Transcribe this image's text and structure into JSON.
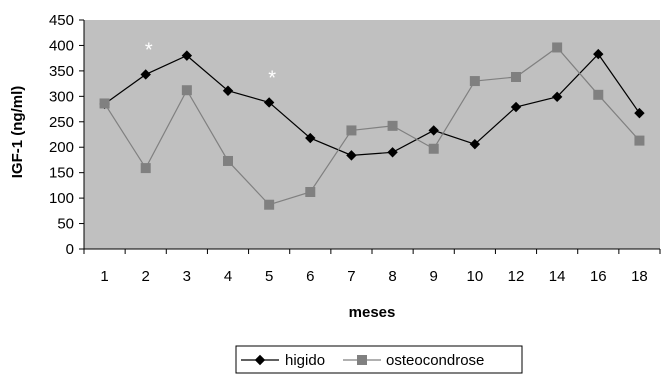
{
  "chart_data": {
    "type": "line",
    "title": "",
    "xlabel": "meses",
    "ylabel": "IGF-1 (ng/ml)",
    "ylim": [
      0,
      450
    ],
    "yticks": [
      "0",
      "50",
      "100",
      "150",
      "200",
      "250",
      "300",
      "350",
      "400",
      "450"
    ],
    "categories": [
      "1",
      "2",
      "3",
      "4",
      "5",
      "6",
      "7",
      "8",
      "9",
      "10",
      "12",
      "14",
      "16",
      "18"
    ],
    "grid": false,
    "legend_position": "bottom",
    "series": [
      {
        "name": "higido",
        "marker": "diamond",
        "color": "#000000",
        "values": [
          285,
          343,
          380,
          311,
          288,
          218,
          184,
          190,
          233,
          206,
          279,
          299,
          383,
          267
        ]
      },
      {
        "name": "osteocondrose",
        "marker": "square",
        "color": "#808080",
        "values": [
          286,
          159,
          312,
          173,
          87,
          112,
          233,
          242,
          197,
          330,
          338,
          396,
          303,
          213
        ]
      }
    ],
    "annotations": [
      {
        "text": "*",
        "category": "2",
        "y": 400
      },
      {
        "text": "*",
        "category": "5",
        "y": 345
      }
    ],
    "colors": {
      "plot_background": "#c0c0c0"
    }
  }
}
